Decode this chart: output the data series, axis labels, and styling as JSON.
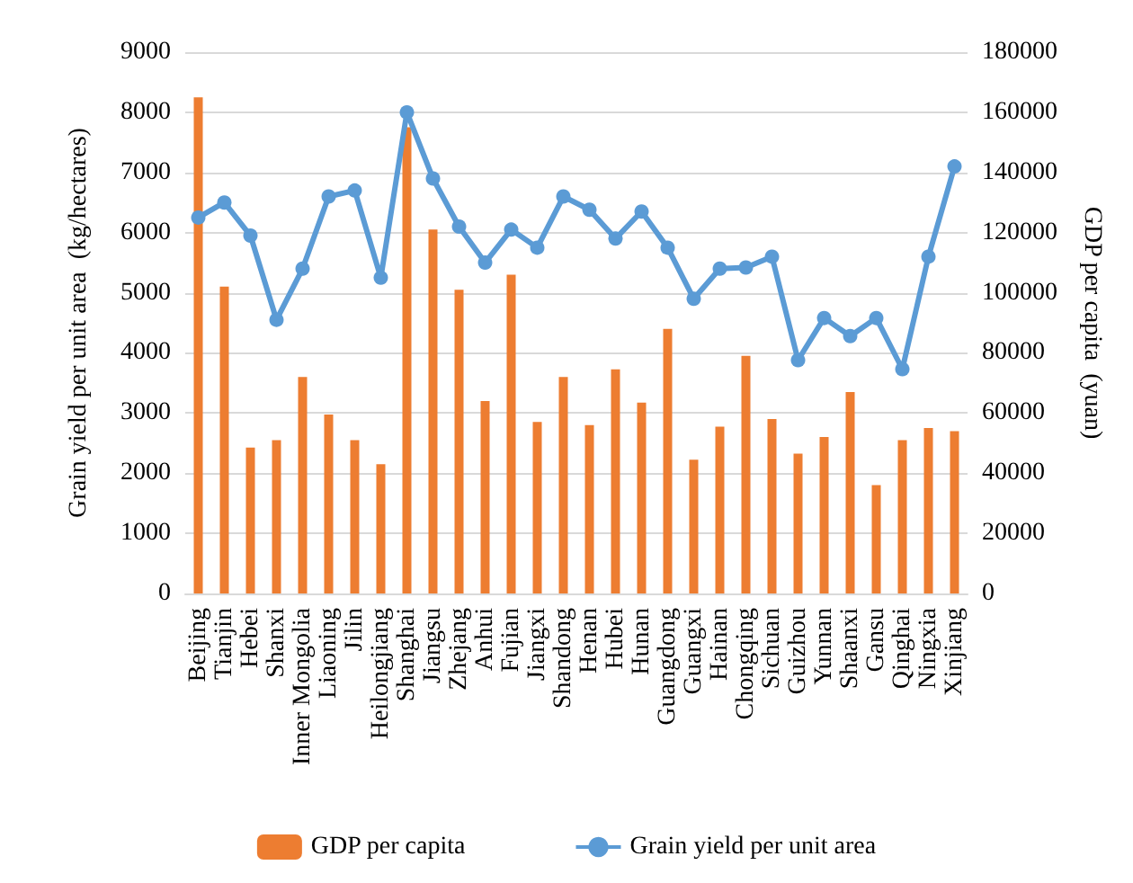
{
  "chart_data": {
    "type": "bar",
    "categories": [
      "Beijing",
      "Tianjin",
      "Hebei",
      "Shanxi",
      "Inner Mongolia",
      "Liaoning",
      "Jilin",
      "Heilongjiang",
      "Shanghai",
      "Jiangsu",
      "Zhejang",
      "Anhui",
      "Fujian",
      "Jiangxi",
      "Shandong",
      "Henan",
      "Hubei",
      "Hunan",
      "Guangdong",
      "Guangxi",
      "Hainan",
      "Chongqing",
      "Sichuan",
      "Guizhou",
      "Yunnan",
      "Shaanxi",
      "Gansu",
      "Qinghai",
      "Ningxia",
      "Xinjiang"
    ],
    "series": [
      {
        "name": "GDP per capita",
        "axis": "y2",
        "color": "#ed7d31",
        "values": [
          165000,
          102000,
          48500,
          51000,
          72000,
          59500,
          51000,
          43000,
          155000,
          121000,
          101000,
          64000,
          106000,
          57000,
          72000,
          56000,
          74500,
          63500,
          88000,
          44500,
          55500,
          79000,
          58000,
          46500,
          52000,
          67000,
          36000,
          51000,
          55000,
          54000
        ]
      },
      {
        "name": "Grain yield per unit area",
        "type": "line",
        "color": "#5b9bd5",
        "values": [
          6250,
          6500,
          5950,
          4550,
          5400,
          6600,
          6700,
          5250,
          8000,
          6900,
          6100,
          5500,
          6050,
          5750,
          6600,
          6380,
          5900,
          6350,
          5750,
          4900,
          5400,
          5420,
          5600,
          3880,
          4580,
          4280,
          4580,
          3730,
          5600,
          7100
        ]
      }
    ],
    "ylabel": "Grain yield per unit area  (kg/hectares)",
    "y2label": "GDP per capita  (yuan)",
    "ylim": [
      0,
      9000
    ],
    "yticks": [
      0,
      1000,
      2000,
      3000,
      4000,
      5000,
      6000,
      7000,
      8000,
      9000
    ],
    "y2lim": [
      0,
      180000
    ],
    "y2ticks": [
      0,
      20000,
      40000,
      60000,
      80000,
      100000,
      120000,
      140000,
      160000,
      180000
    ],
    "grid": "y",
    "legend": "bottom",
    "marker": "circle",
    "line_style": "solid"
  }
}
